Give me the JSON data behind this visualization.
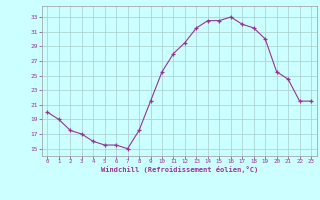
{
  "x": [
    0,
    1,
    2,
    3,
    4,
    5,
    6,
    7,
    8,
    9,
    10,
    11,
    12,
    13,
    14,
    15,
    16,
    17,
    18,
    19,
    20,
    21,
    22,
    23
  ],
  "y": [
    20.0,
    19.0,
    17.5,
    17.0,
    16.0,
    15.5,
    15.5,
    15.0,
    17.5,
    21.5,
    25.5,
    28.0,
    29.5,
    31.5,
    32.5,
    32.5,
    33.0,
    32.0,
    31.5,
    30.0,
    25.5,
    24.5,
    21.5,
    21.5
  ],
  "line_color": "#993399",
  "marker": "+",
  "bg_color": "#ccffff",
  "grid_color": "#aacccc",
  "xlabel": "Windchill (Refroidissement éolien,°C)",
  "xlim": [
    -0.5,
    23.5
  ],
  "ylim": [
    14.0,
    34.5
  ],
  "xticks": [
    0,
    1,
    2,
    3,
    4,
    5,
    6,
    7,
    8,
    9,
    10,
    11,
    12,
    13,
    14,
    15,
    16,
    17,
    18,
    19,
    20,
    21,
    22,
    23
  ],
  "yticks": [
    15,
    17,
    19,
    21,
    23,
    25,
    27,
    29,
    31,
    33
  ],
  "tick_color": "#993399",
  "label_color": "#993399"
}
